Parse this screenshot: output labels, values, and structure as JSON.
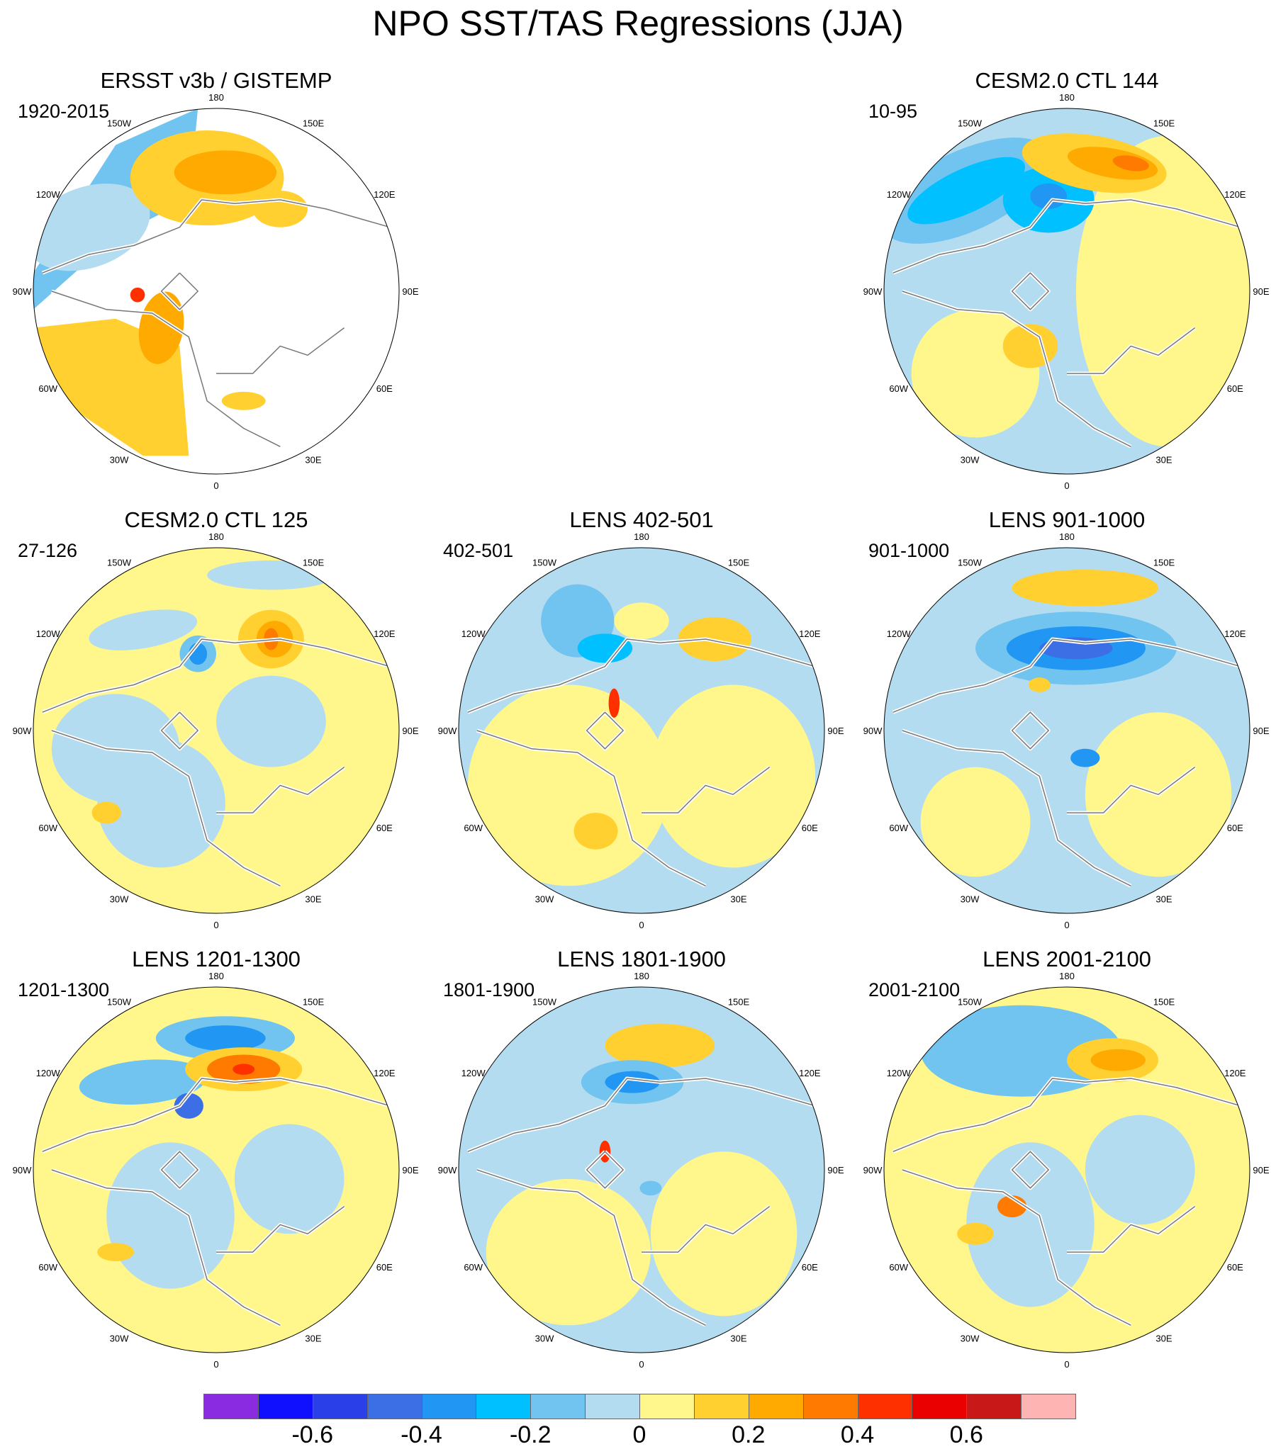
{
  "title": "NPO SST/TAS Regressions (JJA)",
  "longitude_labels": [
    "180",
    "150E",
    "120E",
    "90E",
    "60E",
    "30E",
    "0",
    "30W",
    "60W",
    "90W",
    "120W",
    "150W"
  ],
  "panels": [
    {
      "title": "ERSST v3b / GISTEMP",
      "period": "1920-2015",
      "pattern": "obs"
    },
    {
      "title": "CESM2.0 CTL 144",
      "period": "10-95",
      "pattern": "ctl144"
    },
    {
      "title": "CESM2.0 CTL 125",
      "period": "27-126",
      "pattern": "ctl125"
    },
    {
      "title": "LENS 402-501",
      "period": "402-501",
      "pattern": "l402"
    },
    {
      "title": "LENS 901-1000",
      "period": "901-1000",
      "pattern": "l901"
    },
    {
      "title": "LENS 1201-1300",
      "period": "1201-1300",
      "pattern": "l1201"
    },
    {
      "title": "LENS 1801-1900",
      "period": "1801-1900",
      "pattern": "l1801"
    },
    {
      "title": "LENS 2001-2100",
      "period": "2001-2100",
      "pattern": "l2001"
    }
  ],
  "colorbar": {
    "colors": [
      "#8a2be2",
      "#1010ff",
      "#2a3fe8",
      "#3c6ee6",
      "#2196f3",
      "#00c0ff",
      "#70c4ef",
      "#b4dcf0",
      "#fff68c",
      "#ffd030",
      "#ffaa00",
      "#ff7a00",
      "#ff3000",
      "#ea0000",
      "#c81818",
      "#ffb4b4"
    ],
    "labels": [
      "-0.6",
      "-0.4",
      "-0.2",
      "0",
      "0.2",
      "0.4",
      "0.6"
    ]
  }
}
